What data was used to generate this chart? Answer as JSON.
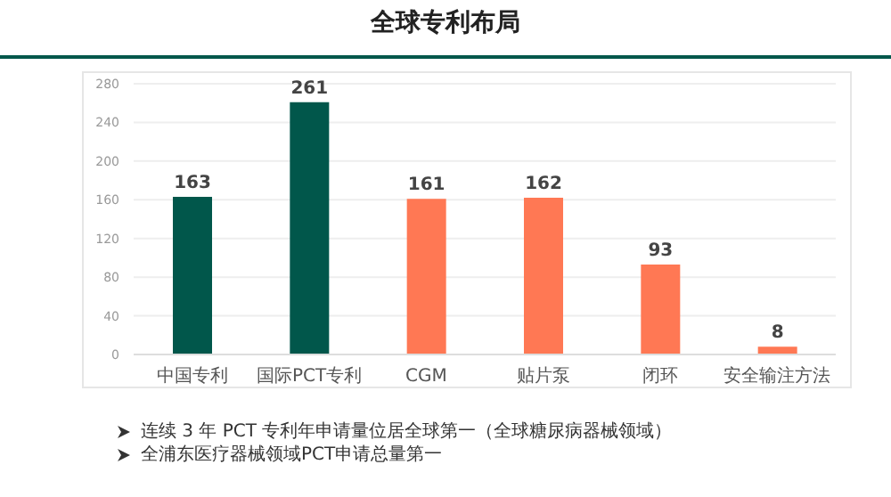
{
  "chart_data": {
    "type": "bar",
    "title": "全球专利布局",
    "categories": [
      "中国专利",
      "国际PCT专利",
      "CGM",
      "贴片泵",
      "闭环",
      "安全输注方法"
    ],
    "values": [
      163,
      261,
      161,
      162,
      93,
      8
    ],
    "colors": [
      "#01574b",
      "#01574b",
      "#ff7854",
      "#ff7854",
      "#ff7854",
      "#ff7854"
    ],
    "ylim": [
      0,
      280
    ],
    "yticks": [
      0,
      40,
      80,
      120,
      160,
      200,
      240,
      280
    ],
    "grid": "y",
    "data_labels": true,
    "annotations": [
      "连续 3 年 PCT 专利年申请量位居全球第一（全球糖尿病器械领域）",
      "全浦东医疗器械领域PCT申请总量第一"
    ]
  }
}
